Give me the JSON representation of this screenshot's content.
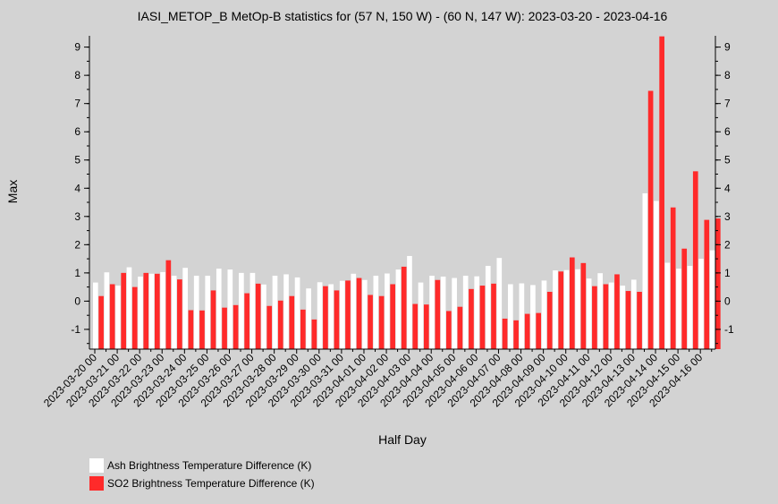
{
  "chart_data": {
    "type": "bar",
    "title": "IASI_METOP_B MetOp-B statistics for (57 N, 150 W) - (60 N, 147 W): 2023-03-20 - 2023-04-16",
    "xlabel": "Half Day",
    "ylabel": "Max",
    "ylim": [
      -1.7,
      9.4
    ],
    "yticks": [
      -1,
      0,
      1,
      2,
      3,
      4,
      5,
      6,
      7,
      8,
      9
    ],
    "xticks": [
      "2023-03-20 00",
      "2023-03-21 00",
      "2023-03-22 00",
      "2023-03-23 00",
      "2023-03-24 00",
      "2023-03-25 00",
      "2023-03-26 00",
      "2023-03-27 00",
      "2023-03-28 00",
      "2023-03-29 00",
      "2023-03-30 00",
      "2023-03-31 00",
      "2023-04-01 00",
      "2023-04-02 00",
      "2023-04-03 00",
      "2023-04-04 00",
      "2023-04-05 00",
      "2023-04-06 00",
      "2023-04-07 00",
      "2023-04-08 00",
      "2023-04-09 00",
      "2023-04-10 00",
      "2023-04-11 00",
      "2023-04-12 00",
      "2023-04-13 00",
      "2023-04-14 00",
      "2023-04-15 00",
      "2023-04-16 00"
    ],
    "series": [
      {
        "name": "Ash Brightness Temperature Difference (K)",
        "color": "#ffffff",
        "values": [
          0.66,
          1.02,
          0.55,
          1.2,
          0.87,
          0.97,
          1.03,
          0.9,
          1.18,
          0.9,
          0.9,
          1.15,
          1.12,
          1.0,
          1.0,
          0.59,
          0.9,
          0.95,
          0.84,
          0.45,
          0.67,
          0.6,
          0.72,
          0.97,
          0.75,
          0.9,
          0.98,
          1.12,
          1.6,
          0.66,
          0.9,
          0.87,
          0.82,
          0.9,
          0.88,
          1.25,
          1.53,
          0.6,
          0.63,
          0.57,
          0.73,
          1.09,
          1.1,
          1.13,
          0.8,
          0.99,
          0.66,
          0.55,
          0.76,
          3.82,
          3.55,
          1.36,
          1.15,
          1.25,
          1.5,
          1.8
        ]
      },
      {
        "name": "SO2 Brightness Temperature Difference (K)",
        "color": "#ff2a2a",
        "values": [
          0.18,
          0.6,
          1.0,
          0.5,
          1.0,
          0.97,
          1.45,
          0.77,
          -0.32,
          -0.33,
          0.38,
          -0.23,
          -0.14,
          0.28,
          0.62,
          -0.17,
          0.02,
          0.18,
          -0.3,
          -0.65,
          0.53,
          0.38,
          0.73,
          0.82,
          0.22,
          0.18,
          0.6,
          1.22,
          -0.1,
          -0.12,
          0.75,
          -0.35,
          -0.2,
          0.43,
          0.55,
          0.62,
          -0.62,
          -0.68,
          -0.45,
          -0.42,
          0.33,
          1.05,
          1.55,
          1.35,
          0.53,
          0.6,
          0.95,
          0.36,
          0.33,
          7.45,
          9.38,
          3.32,
          1.86,
          4.6,
          2.88,
          2.93
        ]
      }
    ]
  }
}
